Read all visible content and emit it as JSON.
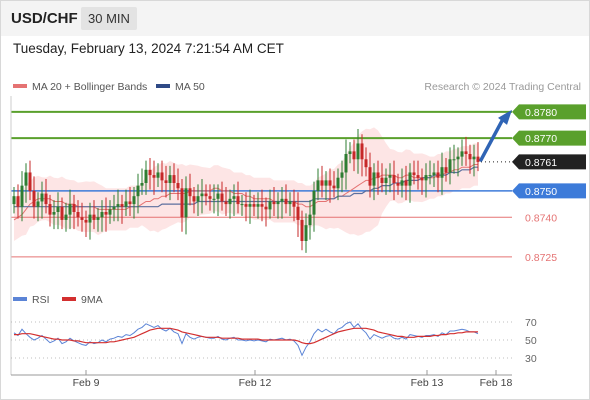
{
  "header": {
    "symbol": "USD/CHF",
    "timeframe": "30 MIN",
    "timestamp": "Tuesday, February 13, 2024 7:21:54 AM CET"
  },
  "legend": {
    "ma20": "MA 20 + Bollinger Bands",
    "ma50": "MA 50",
    "credit": "Research © 2024 Trading Central",
    "rsi": "RSI",
    "rsi_ma": "9MA"
  },
  "colors": {
    "ma20": "#e57373",
    "ma50": "#5c6f9e",
    "band_fill": "#fde0e0",
    "up_candle": "#2e7d32",
    "down_candle": "#c62828",
    "resistance": "#5aa02c",
    "support_main": "#3d7bd9",
    "support_minor": "#e57373",
    "rsi_line": "#5b84d6",
    "rsi_ma_line": "#d32f2f",
    "arrow": "#2f64b5",
    "last_price_bg": "#222222"
  },
  "chart_data": {
    "type": "candlestick",
    "title": "USD/CHF",
    "timeframe": "30 MIN",
    "ylim": [
      0.872,
      0.8786
    ],
    "x_ticks": [
      "Feb 9",
      "Feb 12",
      "Feb 13",
      "Feb 18"
    ],
    "last_price": "0.8761",
    "levels": [
      {
        "value": 0.878,
        "label": "0.8780",
        "kind": "target"
      },
      {
        "value": 0.877,
        "label": "0.8770",
        "kind": "resistance"
      },
      {
        "value": 0.875,
        "label": "0.8750",
        "kind": "pivot"
      },
      {
        "value": 0.874,
        "label": "0.8740",
        "kind": "support"
      },
      {
        "value": 0.8725,
        "label": "0.8725",
        "kind": "support"
      }
    ],
    "close": [
      0.8748,
      0.8744,
      0.8752,
      0.8757,
      0.875,
      0.8744,
      0.8746,
      0.8749,
      0.8745,
      0.8741,
      0.8742,
      0.8744,
      0.8739,
      0.8741,
      0.8745,
      0.8742,
      0.874,
      0.8739,
      0.8738,
      0.8741,
      0.8739,
      0.874,
      0.8742,
      0.8741,
      0.8743,
      0.8744,
      0.8745,
      0.8744,
      0.8746,
      0.8745,
      0.8748,
      0.8752,
      0.8753,
      0.8758,
      0.8756,
      0.8755,
      0.8757,
      0.8754,
      0.8753,
      0.8756,
      0.8753,
      0.8751,
      0.874,
      0.8751,
      0.8748,
      0.8746,
      0.8748,
      0.8749,
      0.8748,
      0.8747,
      0.8747,
      0.8749,
      0.8746,
      0.8745,
      0.8747,
      0.8748,
      0.8745,
      0.8745,
      0.8744,
      0.8745,
      0.8744,
      0.8745,
      0.8744,
      0.8743,
      0.8746,
      0.8745,
      0.8746,
      0.8747,
      0.8745,
      0.8746,
      0.8744,
      0.8739,
      0.8731,
      0.8737,
      0.8741,
      0.875,
      0.8754,
      0.8752,
      0.8754,
      0.8752,
      0.8751,
      0.8755,
      0.8757,
      0.8764,
      0.8765,
      0.8762,
      0.8768,
      0.8762,
      0.8759,
      0.8752,
      0.8757,
      0.8755,
      0.8753,
      0.8755,
      0.8756,
      0.8753,
      0.8752,
      0.8754,
      0.8752,
      0.8757,
      0.8756,
      0.8755,
      0.8754,
      0.8756,
      0.8756,
      0.8757,
      0.8755,
      0.8759,
      0.8757,
      0.8762,
      0.8762,
      0.8763,
      0.8765,
      0.8764,
      0.8762,
      0.8763,
      0.8761
    ],
    "ma20": [
      0.8739,
      0.874,
      0.8741,
      0.8743,
      0.8745,
      0.8746,
      0.8747,
      0.8747,
      0.8747,
      0.8747,
      0.8746,
      0.8746,
      0.8746,
      0.8745,
      0.8745,
      0.8745,
      0.8744,
      0.8744,
      0.8744,
      0.8744,
      0.8744,
      0.8743,
      0.8743,
      0.8743,
      0.8743,
      0.8743,
      0.8743,
      0.8743,
      0.8743,
      0.8744,
      0.8744,
      0.8744,
      0.8745,
      0.8746,
      0.8746,
      0.8747,
      0.8747,
      0.8748,
      0.8748,
      0.8749,
      0.8749,
      0.8749,
      0.8749,
      0.8749,
      0.875,
      0.875,
      0.875,
      0.875,
      0.875,
      0.875,
      0.8751,
      0.8751,
      0.875,
      0.875,
      0.875,
      0.8749,
      0.8749,
      0.8749,
      0.8748,
      0.8748,
      0.8747,
      0.8747,
      0.8747,
      0.8747,
      0.8747,
      0.8746,
      0.8746,
      0.8746,
      0.8746,
      0.8746,
      0.8746,
      0.8745,
      0.8745,
      0.8744,
      0.8744,
      0.8745,
      0.8746,
      0.8746,
      0.8746,
      0.8747,
      0.8747,
      0.8748,
      0.8748,
      0.8749,
      0.875,
      0.8751,
      0.8752,
      0.8753,
      0.8754,
      0.8754,
      0.8755,
      0.8755,
      0.8756,
      0.8756,
      0.8756,
      0.8756,
      0.8755,
      0.8755,
      0.8756,
      0.8756,
      0.8755,
      0.8755,
      0.8755,
      0.8755,
      0.8755,
      0.8755,
      0.8756,
      0.8756,
      0.8757,
      0.8757,
      0.8758,
      0.8758,
      0.8759,
      0.8759,
      0.8759,
      0.876,
      0.876
    ],
    "ma50": [
      0.8744,
      0.8744,
      0.8744,
      0.8744,
      0.8744,
      0.8744,
      0.8744,
      0.8744,
      0.8744,
      0.8744,
      0.8744,
      0.8744,
      0.8744,
      0.8744,
      0.8744,
      0.8744,
      0.8744,
      0.8744,
      0.8744,
      0.8744,
      0.8744,
      0.8744,
      0.8744,
      0.8744,
      0.8744,
      0.8744,
      0.8744,
      0.8744,
      0.8744,
      0.8744,
      0.8744,
      0.8744,
      0.8744,
      0.8744,
      0.8744,
      0.8744,
      0.8744,
      0.8745,
      0.8745,
      0.8745,
      0.8745,
      0.8745,
      0.8745,
      0.8745,
      0.8745,
      0.8745,
      0.8746,
      0.8746,
      0.8746,
      0.8746,
      0.8746,
      0.8746,
      0.8746,
      0.8746,
      0.8746,
      0.8746,
      0.8746,
      0.8746,
      0.8746,
      0.8746,
      0.8746,
      0.8746,
      0.8746,
      0.8746,
      0.8746,
      0.8746,
      0.8746,
      0.8746,
      0.8746,
      0.8746,
      0.8746,
      0.8746,
      0.8746,
      0.8746,
      0.8746,
      0.8747,
      0.8747,
      0.8747,
      0.8747,
      0.8747,
      0.8747,
      0.8748,
      0.8748,
      0.8748,
      0.8748,
      0.8749,
      0.8749,
      0.8749,
      0.875,
      0.875,
      0.8751,
      0.8751,
      0.8752,
      0.8752,
      0.8752,
      0.8753,
      0.8753,
      0.8753,
      0.8754,
      0.8754,
      0.8754,
      0.8754,
      0.8755,
      0.8755,
      0.8755,
      0.8756,
      0.8756,
      0.8756,
      0.8756,
      0.8757,
      0.8757,
      0.8757,
      0.8758,
      0.8758,
      0.8758,
      0.8759,
      0.8759
    ],
    "forecast_target": 0.878,
    "rsi_panel": {
      "ylim": [
        20,
        80
      ],
      "y_ticks": [
        "70",
        "50",
        "30"
      ],
      "rsi": [
        58,
        55,
        62,
        57,
        53,
        50,
        52,
        55,
        51,
        47,
        49,
        52,
        46,
        48,
        52,
        49,
        47,
        45,
        44,
        48,
        46,
        47,
        50,
        48,
        51,
        52,
        54,
        53,
        56,
        55,
        58,
        62,
        64,
        68,
        66,
        64,
        66,
        62,
        60,
        63,
        59,
        57,
        46,
        57,
        53,
        51,
        53,
        54,
        53,
        52,
        52,
        54,
        51,
        50,
        52,
        53,
        50,
        50,
        49,
        50,
        49,
        50,
        49,
        48,
        51,
        50,
        51,
        52,
        50,
        51,
        49,
        44,
        33,
        42,
        48,
        57,
        62,
        59,
        62,
        59,
        57,
        62,
        64,
        68,
        70,
        64,
        68,
        62,
        58,
        51,
        56,
        54,
        52,
        54,
        55,
        52,
        51,
        53,
        51,
        56,
        55,
        54,
        53,
        55,
        55,
        56,
        54,
        58,
        56,
        60,
        60,
        61,
        62,
        61,
        59,
        59,
        57
      ],
      "rsi_ma": [
        56,
        56,
        57,
        57,
        57,
        56,
        55,
        54,
        53,
        52,
        51,
        51,
        50,
        50,
        50,
        49,
        49,
        48,
        47,
        47,
        47,
        47,
        47,
        47,
        48,
        48,
        49,
        50,
        51,
        52,
        53,
        55,
        57,
        59,
        61,
        62,
        63,
        63,
        63,
        63,
        62,
        61,
        59,
        58,
        57,
        56,
        55,
        54,
        53,
        53,
        53,
        53,
        52,
        52,
        52,
        52,
        52,
        51,
        51,
        51,
        51,
        51,
        50,
        50,
        50,
        50,
        50,
        50,
        50,
        50,
        50,
        49,
        47,
        46,
        46,
        47,
        49,
        51,
        53,
        55,
        57,
        59,
        60,
        61,
        62,
        63,
        63,
        63,
        63,
        62,
        61,
        59,
        58,
        57,
        56,
        55,
        54,
        54,
        53,
        53,
        53,
        54,
        54,
        54,
        54,
        55,
        55,
        56,
        56,
        57,
        57,
        58,
        58,
        59,
        59,
        59,
        59
      ]
    }
  }
}
